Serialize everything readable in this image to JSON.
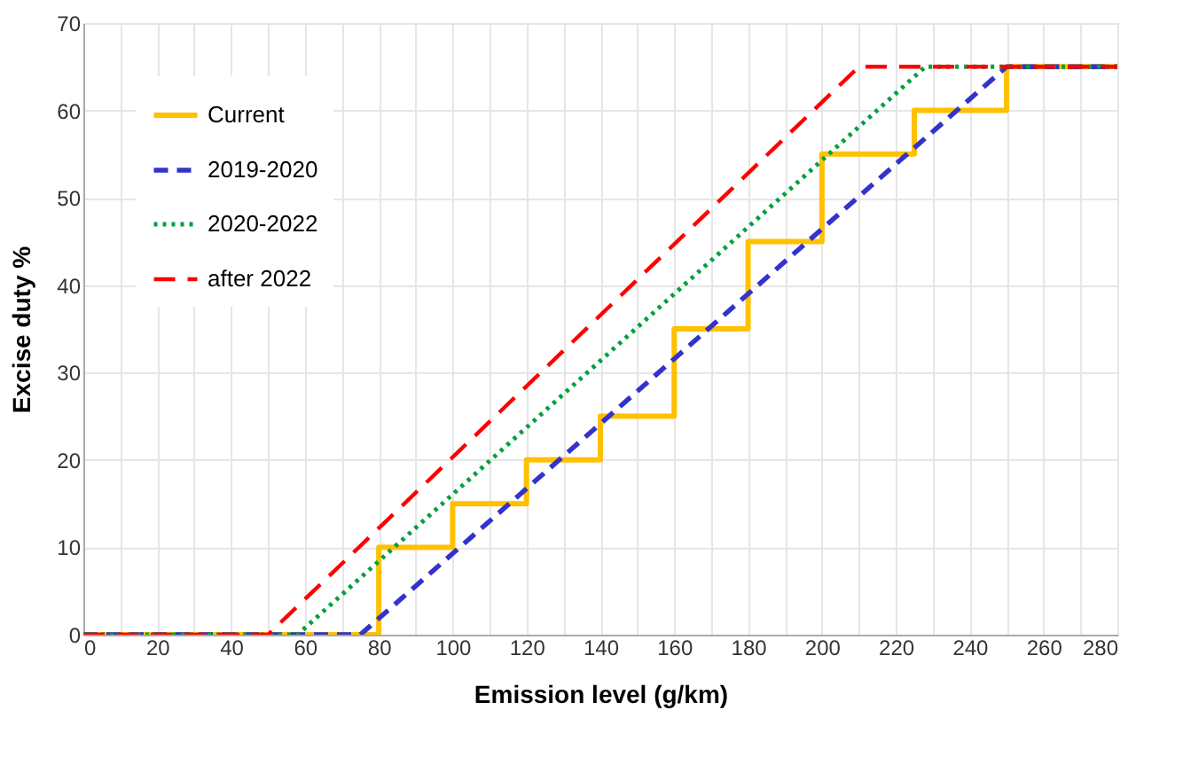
{
  "chart_data": {
    "type": "line",
    "xlabel": "Emission level  (g/km)",
    "ylabel": "Excise duty %",
    "xlim": [
      0,
      280
    ],
    "ylim": [
      0,
      70
    ],
    "xticks": [
      0,
      {
        "value": 10,
        "label": null
      },
      20,
      {
        "value": 30,
        "label": null
      },
      40,
      {
        "value": 50,
        "label": null
      },
      60,
      {
        "value": 70,
        "label": null
      },
      80,
      {
        "value": 90,
        "label": null
      },
      100,
      {
        "value": 110,
        "label": null
      },
      120,
      {
        "value": 130,
        "label": null
      },
      140,
      {
        "value": 150,
        "label": null
      },
      160,
      {
        "value": 170,
        "label": null
      },
      180,
      {
        "value": 190,
        "label": null
      },
      200,
      {
        "value": 210,
        "label": null
      },
      220,
      {
        "value": 230,
        "label": null
      },
      240,
      {
        "value": 250,
        "label": null
      },
      260,
      {
        "value": 270,
        "label": null
      },
      280
    ],
    "yticks": [
      0,
      10,
      20,
      30,
      40,
      50,
      60,
      70
    ],
    "grid": true,
    "legend": "top left",
    "marker": "none",
    "series": [
      {
        "name": "Current",
        "color": "#ffc000",
        "line_style": "solid",
        "x": [
          0,
          80,
          80,
          100,
          100,
          120,
          120,
          140,
          140,
          160,
          160,
          180,
          180,
          200,
          200,
          225,
          225,
          250,
          250,
          280
        ],
        "values": [
          0,
          0,
          10,
          10,
          15,
          15,
          20,
          20,
          25,
          25,
          35,
          35,
          45,
          45,
          55,
          55,
          60,
          60,
          65,
          65
        ]
      },
      {
        "name": "2019-2020",
        "color": "#3333cc",
        "line_style": "dashed",
        "x": [
          0,
          75,
          250,
          280
        ],
        "values": [
          0,
          0,
          65,
          65
        ]
      },
      {
        "name": "2020-2022",
        "color": "#00a040",
        "line_style": "dotted",
        "x": [
          0,
          58,
          228,
          280
        ],
        "values": [
          0,
          0,
          65,
          65
        ]
      },
      {
        "name": "after 2022",
        "color": "#ff0000",
        "line_style": "dashed",
        "x": [
          0,
          50,
          210,
          280
        ],
        "values": [
          0,
          0,
          65,
          65
        ]
      }
    ]
  }
}
